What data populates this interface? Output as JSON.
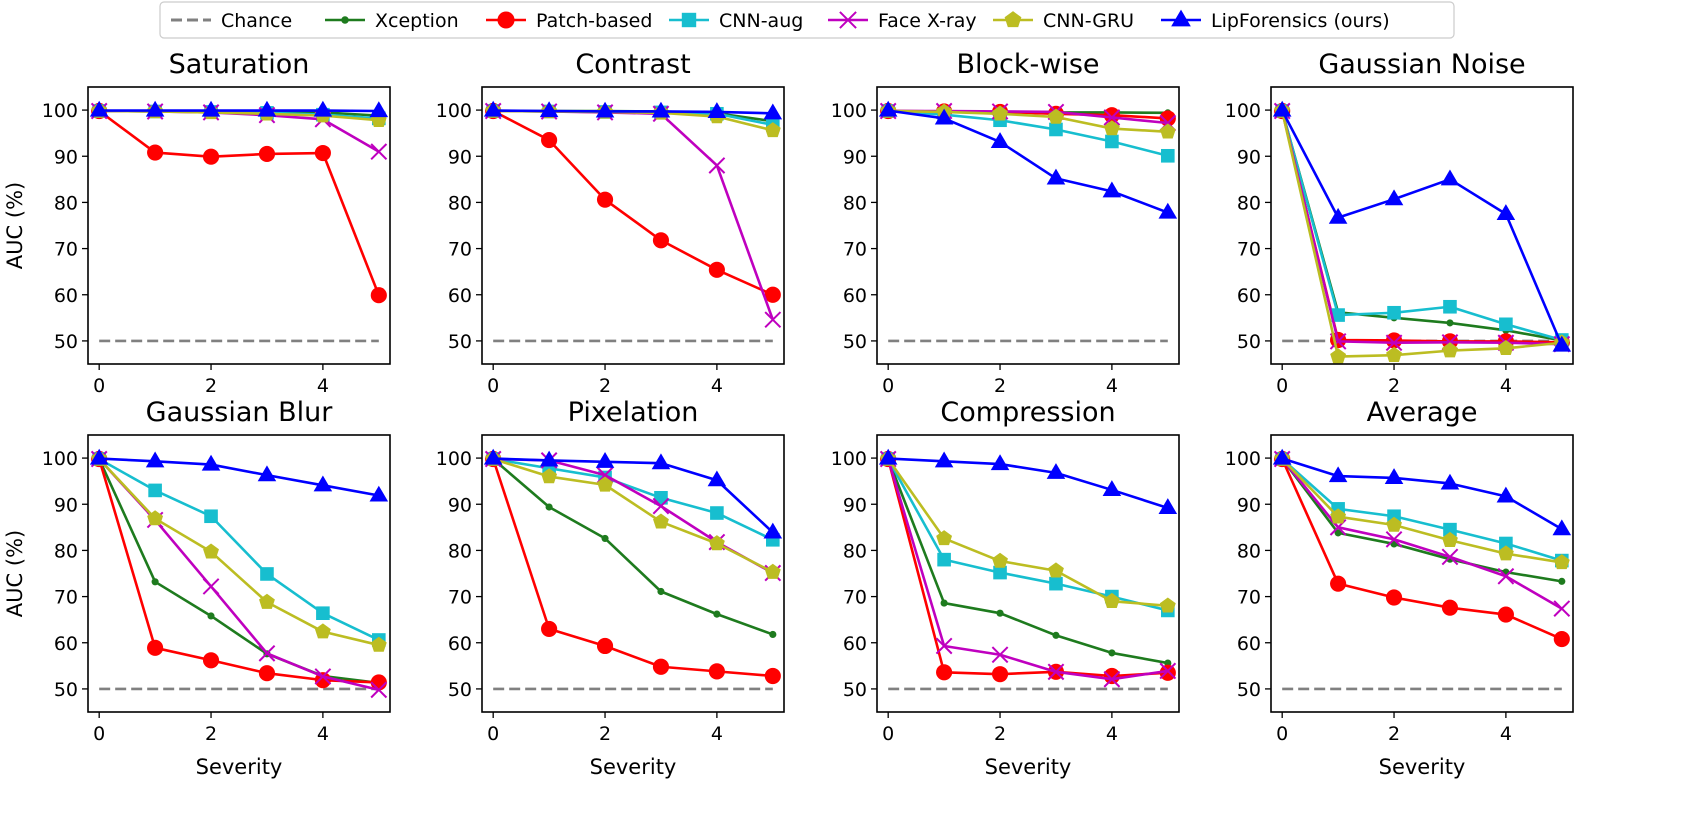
{
  "legend": {
    "location": "top-center",
    "ncol": 7
  },
  "chart_data": {
    "type": "line",
    "shared_x_label": "Severity",
    "shared_y_label": "AUC (%)",
    "x": [
      0,
      1,
      2,
      3,
      4,
      5
    ],
    "xticks": [
      "0",
      "2",
      "4"
    ],
    "xtick_values": [
      0,
      2,
      4
    ],
    "xlim": [
      -0.2,
      5.2
    ],
    "ylim": [
      45,
      105
    ],
    "yticks": [
      "50",
      "60",
      "70",
      "80",
      "90",
      "100"
    ],
    "ytick_values": [
      50,
      60,
      70,
      80,
      90,
      100
    ],
    "reference_line": {
      "name": "Chance",
      "value": 50,
      "color": "#808080",
      "style": "dashed"
    },
    "series_styles": [
      {
        "name": "Xception",
        "color": "#1e7b1e",
        "marker": "circle-small"
      },
      {
        "name": "Patch-based",
        "color": "#ff0000",
        "marker": "circle"
      },
      {
        "name": "CNN-aug",
        "color": "#17becf",
        "marker": "square"
      },
      {
        "name": "Face X-ray",
        "color": "#bf00bf",
        "marker": "x"
      },
      {
        "name": "CNN-GRU",
        "color": "#bcbd22",
        "marker": "pentagon"
      },
      {
        "name": "LipForensics (ours)",
        "color": "#0000ff",
        "marker": "triangle"
      }
    ],
    "panels": [
      {
        "title": "Saturation",
        "series": [
          {
            "name": "Xception",
            "values": [
              99.8,
              99.8,
              99.8,
              99.6,
              99.5,
              98.8
            ]
          },
          {
            "name": "Patch-based",
            "values": [
              99.8,
              90.8,
              89.9,
              90.5,
              90.7,
              59.9
            ]
          },
          {
            "name": "CNN-aug",
            "values": [
              99.8,
              99.7,
              99.6,
              99.4,
              99.0,
              98.2
            ]
          },
          {
            "name": "Face X-ray",
            "values": [
              99.8,
              99.7,
              99.5,
              98.9,
              98.0,
              91.0
            ]
          },
          {
            "name": "CNN-GRU",
            "values": [
              99.8,
              99.7,
              99.5,
              99.2,
              98.8,
              97.8
            ]
          },
          {
            "name": "LipForensics (ours)",
            "values": [
              99.9,
              99.9,
              99.9,
              99.9,
              99.9,
              99.8
            ]
          }
        ]
      },
      {
        "title": "Contrast",
        "series": [
          {
            "name": "Xception",
            "values": [
              99.8,
              99.8,
              99.8,
              99.7,
              99.3,
              97.6
            ]
          },
          {
            "name": "Patch-based",
            "values": [
              99.8,
              93.5,
              80.6,
              71.8,
              65.4,
              60.0
            ]
          },
          {
            "name": "CNN-aug",
            "values": [
              99.8,
              99.7,
              99.6,
              99.5,
              99.2,
              96.8
            ]
          },
          {
            "name": "Face X-ray",
            "values": [
              99.8,
              99.7,
              99.5,
              99.2,
              88.0,
              54.6
            ]
          },
          {
            "name": "CNN-GRU",
            "values": [
              99.8,
              99.7,
              99.6,
              99.4,
              98.6,
              95.6
            ]
          },
          {
            "name": "LipForensics (ours)",
            "values": [
              99.9,
              99.8,
              99.7,
              99.7,
              99.6,
              99.3
            ]
          }
        ]
      },
      {
        "title": "Block-wise",
        "series": [
          {
            "name": "Xception",
            "values": [
              99.8,
              99.7,
              99.6,
              99.5,
              99.5,
              99.4
            ]
          },
          {
            "name": "Patch-based",
            "values": [
              99.8,
              99.7,
              99.6,
              99.2,
              98.9,
              98.2
            ]
          },
          {
            "name": "CNN-aug",
            "values": [
              99.8,
              99.0,
              97.8,
              95.8,
              93.2,
              90.1
            ]
          },
          {
            "name": "Face X-ray",
            "values": [
              99.8,
              99.8,
              99.7,
              99.6,
              98.4,
              97.2
            ]
          },
          {
            "name": "CNN-GRU",
            "values": [
              99.8,
              99.6,
              99.2,
              98.5,
              96.0,
              95.3
            ]
          },
          {
            "name": "LipForensics (ours)",
            "values": [
              99.9,
              98.2,
              93.1,
              85.2,
              82.4,
              77.8
            ]
          }
        ]
      },
      {
        "title": "Gaussian Noise",
        "series": [
          {
            "name": "Xception",
            "values": [
              99.8,
              56.2,
              55.0,
              53.9,
              52.3,
              50.1
            ]
          },
          {
            "name": "Patch-based",
            "values": [
              99.8,
              50.2,
              50.1,
              49.9,
              49.9,
              49.7
            ]
          },
          {
            "name": "CNN-aug",
            "values": [
              99.8,
              55.6,
              56.1,
              57.4,
              53.6,
              50.2
            ]
          },
          {
            "name": "Face X-ray",
            "values": [
              99.8,
              49.9,
              49.6,
              49.7,
              49.6,
              49.3
            ]
          },
          {
            "name": "CNN-GRU",
            "values": [
              99.8,
              46.6,
              46.9,
              47.9,
              48.4,
              49.6
            ]
          },
          {
            "name": "LipForensics (ours)",
            "values": [
              99.9,
              76.7,
              80.7,
              85.0,
              77.5,
              49.0
            ]
          }
        ]
      },
      {
        "title": "Gaussian Blur",
        "series": [
          {
            "name": "Xception",
            "values": [
              99.8,
              73.2,
              65.8,
              57.6,
              52.8,
              51.3
            ]
          },
          {
            "name": "Patch-based",
            "values": [
              99.8,
              58.9,
              56.2,
              53.4,
              51.9,
              51.4
            ]
          },
          {
            "name": "CNN-aug",
            "values": [
              99.8,
              93.0,
              87.4,
              74.9,
              66.4,
              60.6
            ]
          },
          {
            "name": "Face X-ray",
            "values": [
              99.8,
              86.6,
              72.2,
              57.7,
              52.7,
              49.8
            ]
          },
          {
            "name": "CNN-GRU",
            "values": [
              99.8,
              86.9,
              79.7,
              68.8,
              62.4,
              59.5
            ]
          },
          {
            "name": "LipForensics (ours)",
            "values": [
              99.9,
              99.3,
              98.6,
              96.3,
              94.1,
              91.9
            ]
          }
        ]
      },
      {
        "title": "Pixelation",
        "series": [
          {
            "name": "Xception",
            "values": [
              99.8,
              89.4,
              82.6,
              71.1,
              66.2,
              61.8
            ]
          },
          {
            "name": "Patch-based",
            "values": [
              99.8,
              63.0,
              59.3,
              54.8,
              53.8,
              52.8
            ]
          },
          {
            "name": "CNN-aug",
            "values": [
              99.8,
              97.8,
              95.8,
              91.4,
              88.1,
              82.3
            ]
          },
          {
            "name": "Face X-ray",
            "values": [
              99.8,
              99.5,
              96.3,
              89.6,
              81.8,
              75.1
            ]
          },
          {
            "name": "CNN-GRU",
            "values": [
              99.8,
              96.0,
              94.2,
              86.2,
              81.5,
              75.3
            ]
          },
          {
            "name": "LipForensics (ours)",
            "values": [
              99.9,
              99.5,
              99.2,
              98.9,
              95.2,
              83.9
            ]
          }
        ]
      },
      {
        "title": "Compression",
        "series": [
          {
            "name": "Xception",
            "values": [
              99.8,
              68.6,
              66.4,
              61.6,
              57.8,
              55.6
            ]
          },
          {
            "name": "Patch-based",
            "values": [
              99.8,
              53.6,
              53.2,
              53.7,
              52.8,
              53.5
            ]
          },
          {
            "name": "CNN-aug",
            "values": [
              99.8,
              78.0,
              75.2,
              72.8,
              70.0,
              67.0
            ]
          },
          {
            "name": "Face X-ray",
            "values": [
              99.8,
              59.3,
              57.4,
              53.7,
              52.1,
              53.9
            ]
          },
          {
            "name": "CNN-GRU",
            "values": [
              99.8,
              82.6,
              77.7,
              75.6,
              69.0,
              68.0
            ]
          },
          {
            "name": "LipForensics (ours)",
            "values": [
              99.9,
              99.3,
              98.7,
              96.8,
              93.1,
              89.2
            ]
          }
        ]
      },
      {
        "title": "Average",
        "series": [
          {
            "name": "Xception",
            "values": [
              99.8,
              83.8,
              81.4,
              78.1,
              75.3,
              73.3
            ]
          },
          {
            "name": "Patch-based",
            "values": [
              99.8,
              72.8,
              69.8,
              67.6,
              66.1,
              60.8
            ]
          },
          {
            "name": "CNN-aug",
            "values": [
              99.8,
              89.0,
              87.4,
              84.5,
              81.5,
              77.8
            ]
          },
          {
            "name": "Face X-ray",
            "values": [
              99.8,
              85.0,
              82.4,
              78.6,
              74.4,
              67.4
            ]
          },
          {
            "name": "CNN-GRU",
            "values": [
              99.8,
              87.3,
              85.5,
              82.2,
              79.3,
              77.4
            ]
          },
          {
            "name": "LipForensics (ours)",
            "values": [
              99.9,
              96.1,
              95.7,
              94.5,
              91.7,
              84.6
            ]
          }
        ]
      }
    ]
  }
}
